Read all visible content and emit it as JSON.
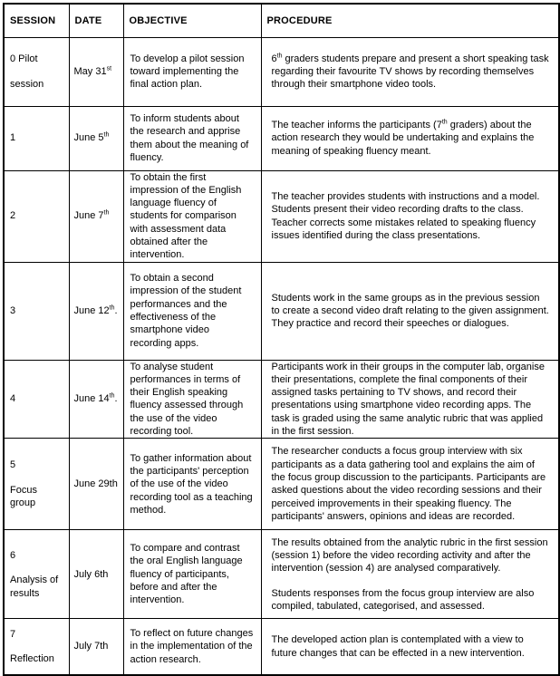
{
  "table": {
    "headers": [
      "SESSION",
      "DATE",
      "OBJECTIVE",
      "PROCEDURE"
    ],
    "rows": [
      {
        "session_lines": [
          "0 Pilot",
          "session"
        ],
        "date": [
          {
            "t": "May 31"
          },
          {
            "t": "st",
            "sup": true
          }
        ],
        "objective": "To develop a pilot session toward implementing the final action plan.",
        "procedure": [
          [
            {
              "t": "6"
            },
            {
              "t": "th",
              "sup": true
            },
            {
              "t": " graders students prepare and present a short speaking task regarding their favourite TV shows by recording themselves through their smartphone video tools."
            }
          ]
        ]
      },
      {
        "session_lines": [
          "1"
        ],
        "date": [
          {
            "t": "June 5"
          },
          {
            "t": "th",
            "sup": true
          }
        ],
        "objective": "To inform students about the research and apprise them about the meaning of fluency.",
        "procedure": [
          [
            {
              "t": "The teacher informs the participants (7"
            },
            {
              "t": "th",
              "sup": true
            },
            {
              "t": " graders) about the action research they would be undertaking and explains the meaning of speaking fluency meant."
            }
          ]
        ]
      },
      {
        "session_lines": [
          "2"
        ],
        "date": [
          {
            "t": "June 7"
          },
          {
            "t": "th",
            "sup": true
          }
        ],
        "objective": "To obtain the first impression of the English language fluency of students for comparison with assessment data obtained after the intervention.",
        "procedure": [
          [
            {
              "t": "The teacher provides students with instructions and a model. Students present their video recording drafts to the class. Teacher corrects some mistakes related to speaking fluency issues identified during the class presentations."
            }
          ]
        ]
      },
      {
        "session_lines": [
          "3"
        ],
        "date": [
          {
            "t": "June 12"
          },
          {
            "t": "th",
            "sup": true
          },
          {
            "t": "."
          }
        ],
        "objective": "To obtain a second impression of the student performances and the effectiveness of the smartphone video recording apps.",
        "procedure": [
          [
            {
              "t": "Students work in the same groups as in the previous session to create a second video draft relating to the given assignment. They practice and record their speeches or dialogues."
            }
          ]
        ]
      },
      {
        "session_lines": [
          "4"
        ],
        "date": [
          {
            "t": "June 14"
          },
          {
            "t": "th",
            "sup": true
          },
          {
            "t": "."
          }
        ],
        "objective": "To analyse student performances in terms of their English speaking fluency assessed through the use of the video recording tool.",
        "procedure": [
          [
            {
              "t": "Participants work in their groups in the computer lab, organise their presentations, complete the final components of their assigned tasks pertaining to TV shows, and record their presentations using smartphone video recording apps. The task is graded using the same analytic rubric that was applied in the first session."
            }
          ]
        ]
      },
      {
        "session_lines": [
          "5",
          "Focus group"
        ],
        "date": [
          {
            "t": "June 29th"
          }
        ],
        "objective": "To gather information about the participants' perception of the use of the video recording tool as a teaching method.",
        "procedure": [
          [
            {
              "t": "The researcher conducts a focus group interview with six participants as a data gathering tool and explains the aim of the focus group discussion to the participants. Participants are asked questions about the video recording sessions and their perceived improvements in their speaking fluency. The participants' answers, opinions and ideas are recorded."
            }
          ]
        ]
      },
      {
        "session_lines": [
          "6",
          "Analysis of results"
        ],
        "date": [
          {
            "t": "July 6th"
          }
        ],
        "objective": "To compare and contrast the oral English language fluency of participants, before and after the intervention.",
        "procedure": [
          [
            {
              "t": "The results obtained from the analytic rubric in the first session (session 1) before the video recording activity and after the intervention (session 4) are analysed comparatively."
            }
          ],
          [
            {
              "t": "Students responses from the focus group interview are also compiled, tabulated, categorised, and assessed."
            }
          ]
        ]
      },
      {
        "session_lines": [
          "7",
          "Reflection"
        ],
        "date": [
          {
            "t": "July 7th"
          }
        ],
        "objective": "To reflect on future changes in the implementation of the action research.",
        "procedure": [
          [
            {
              "t": "The developed action plan is contemplated with a view to future changes that can be effected in a new intervention."
            }
          ]
        ]
      }
    ]
  }
}
